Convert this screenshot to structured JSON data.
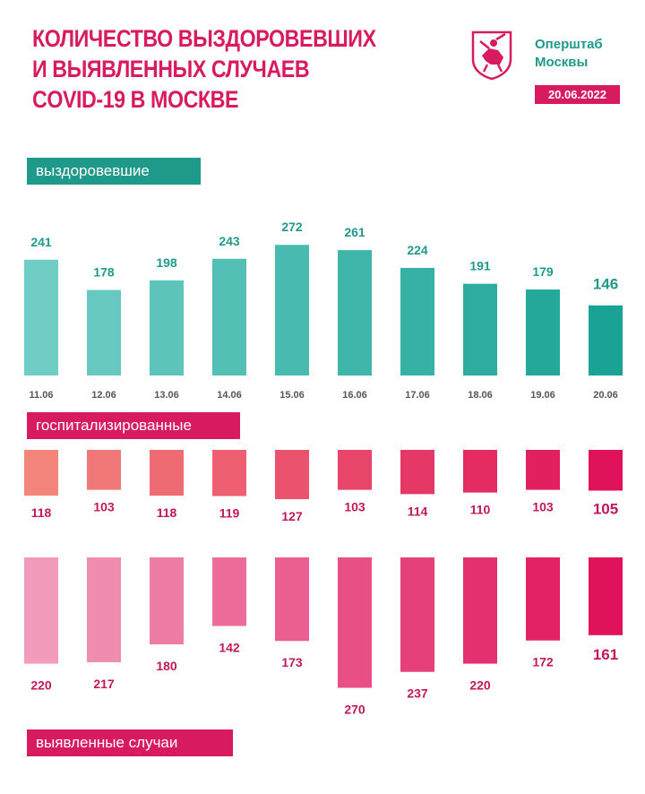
{
  "header": {
    "title_lines": [
      "КОЛИЧЕСТВО ВЫЗДОРОВЕВШИХ",
      "И ВЫЯВЛЕННЫХ СЛУЧАЕВ",
      "COVID-19 В МОСКВЕ"
    ],
    "org_lines": [
      "Оперштаб",
      "Москвы"
    ],
    "date": "20.06.2022"
  },
  "colors": {
    "teal": "#1f9a8a",
    "pink": "#d81b60",
    "teal_light": "#6fcdc6",
    "teal_dark": "#1aa394",
    "hosp_light": "#f3857b",
    "hosp_dark": "#e0125c",
    "cases_light": "#f29bbb",
    "cases_dark": "#e0125c"
  },
  "chart_data": [
    {
      "type": "bar",
      "title": "выздоровевшие",
      "categories": [
        "11.06",
        "12.06",
        "13.06",
        "14.06",
        "15.06",
        "16.06",
        "17.06",
        "18.06",
        "19.06",
        "20.06"
      ],
      "values": [
        241,
        178,
        198,
        243,
        272,
        261,
        224,
        191,
        179,
        146
      ]
    },
    {
      "type": "bar",
      "title": "госпитализированные",
      "categories": [
        "11.06",
        "12.06",
        "13.06",
        "14.06",
        "15.06",
        "16.06",
        "17.06",
        "18.06",
        "19.06",
        "20.06"
      ],
      "values": [
        118,
        103,
        118,
        119,
        127,
        103,
        114,
        110,
        103,
        105
      ]
    },
    {
      "type": "bar",
      "title": "выявленные случаи",
      "categories": [
        "11.06",
        "12.06",
        "13.06",
        "14.06",
        "15.06",
        "16.06",
        "17.06",
        "18.06",
        "19.06",
        "20.06"
      ],
      "values": [
        220,
        217,
        180,
        142,
        173,
        270,
        237,
        220,
        172,
        161
      ]
    }
  ]
}
